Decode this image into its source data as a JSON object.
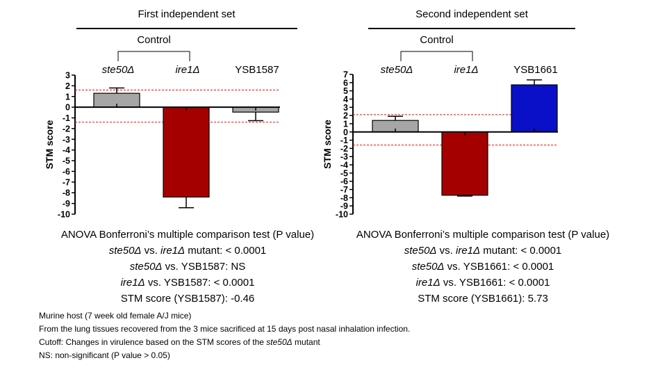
{
  "panels": [
    {
      "title": "First independent set",
      "control_label": "Control",
      "stats": {
        "heading": "ANOVA Bonferroni’s multiple comparison test (P value)",
        "lines": [
          {
            "a": "ste50Δ",
            "b": " vs. ",
            "c": "ire1Δ",
            "d": " mutant: < 0.0001"
          },
          {
            "a": "ste50Δ",
            "b": " vs. YSB1587: NS",
            "c": "",
            "d": ""
          },
          {
            "a": "ire1Δ",
            "b": " vs. YSB1587: < 0.0001",
            "c": "",
            "d": ""
          },
          {
            "a": "",
            "b": "STM score (YSB1587): -0.46",
            "c": "",
            "d": ""
          }
        ]
      }
    },
    {
      "title": "Second independent set",
      "control_label": "Control",
      "stats": {
        "heading": "ANOVA Bonferroni’s multiple comparison test (P value)",
        "lines": [
          {
            "a": "ste50Δ",
            "b": " vs. ",
            "c": "ire1Δ",
            "d": " mutant: < 0.0001"
          },
          {
            "a": "ste50Δ",
            "b": " vs. YSB1661: < 0.0001",
            "c": "",
            "d": ""
          },
          {
            "a": "ire1Δ",
            "b": " vs. YSB1661: < 0.0001",
            "c": "",
            "d": ""
          },
          {
            "a": "",
            "b": "STM score (YSB1661): 5.73",
            "c": "",
            "d": ""
          }
        ]
      }
    }
  ],
  "notes": [
    {
      "pre": "Murine host (7 week old female A/J mice)",
      "it": "",
      "post": ""
    },
    {
      "pre": "From the lung tissues recovered from the 3 mice sacrificed at 15 days post nasal inhalation infection.",
      "it": "",
      "post": ""
    },
    {
      "pre": "Cutoff: Changes in virulence based on the STM scores of the ",
      "it": "ste50Δ",
      "post": " mutant"
    },
    {
      "pre": "NS: non-significant (P value > 0.05)",
      "it": "",
      "post": ""
    }
  ],
  "colors": {
    "gray": "#a6a6a6",
    "dark_red": "#a50000",
    "blue": "#0a10c8",
    "cutoff": "#ff0000"
  },
  "chart_data": [
    {
      "type": "bar",
      "ylabel": "STM score",
      "ylim": [
        -10,
        3
      ],
      "yticks": [
        3,
        2,
        1,
        0,
        -1,
        -2,
        -3,
        -4,
        -5,
        -6,
        -7,
        -8,
        -9,
        -10
      ],
      "categories": [
        "ste50Δ",
        "ire1Δ",
        "YSB1587"
      ],
      "category_italic": [
        true,
        true,
        false
      ],
      "values": [
        1.3,
        -8.4,
        -0.46
      ],
      "errors": [
        0.5,
        1.0,
        0.8
      ],
      "bar_colors": [
        "gray",
        "dark_red",
        "gray"
      ],
      "cutoffs": [
        1.6,
        -1.4
      ]
    },
    {
      "type": "bar",
      "ylabel": "STM score",
      "ylim": [
        -10,
        7
      ],
      "yticks": [
        7,
        6,
        5,
        4,
        3,
        2,
        1,
        0,
        -1,
        -2,
        -3,
        -4,
        -5,
        -6,
        -7,
        -8,
        -9,
        -10
      ],
      "categories": [
        "ste50Δ",
        "ire1Δ",
        "YSB1661"
      ],
      "category_italic": [
        true,
        true,
        false
      ],
      "values": [
        1.4,
        -7.7,
        5.73
      ],
      "errors": [
        0.5,
        0.1,
        0.6
      ],
      "bar_colors": [
        "gray",
        "dark_red",
        "blue"
      ],
      "cutoffs": [
        2.1,
        -1.6
      ]
    }
  ]
}
